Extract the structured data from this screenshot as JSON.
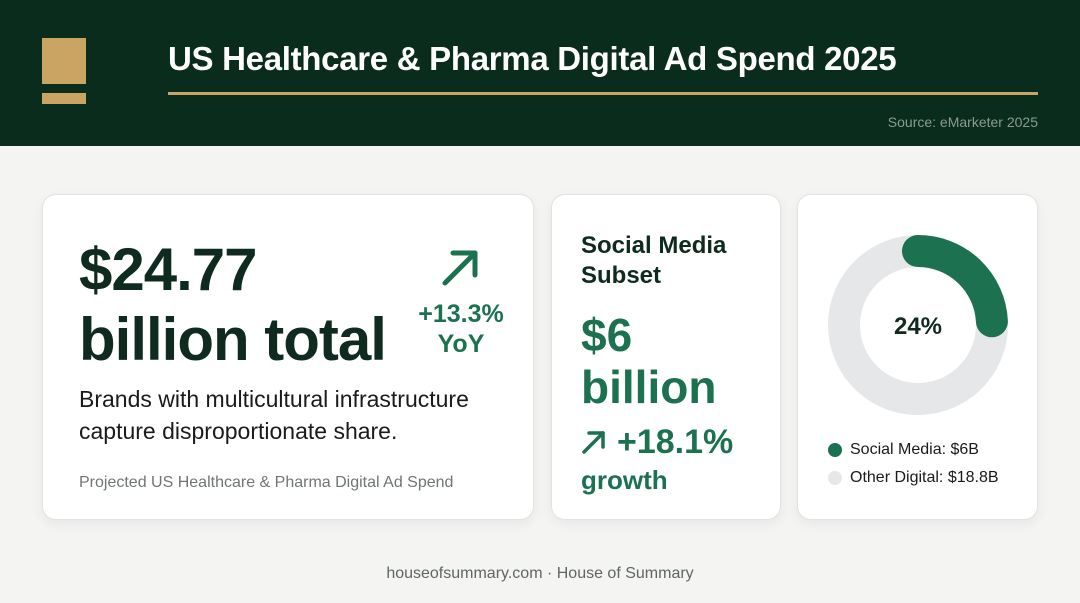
{
  "header": {
    "title": "US Healthcare & Pharma Digital Ad Spend 2025",
    "source": "Source: eMarketer 2025"
  },
  "total_card": {
    "value_line1": "$24.77",
    "value_line2": "billion total",
    "yoy_line1": "+13.3%",
    "yoy_line2": "YoY",
    "description": "Brands with multicultural infrastructure capture disproportionate share.",
    "note": "Projected US Healthcare & Pharma Digital Ad Spend"
  },
  "social_card": {
    "title": "Social Media Subset",
    "value_line1": "$6",
    "value_line2": "billion",
    "growth": "+18.1%",
    "growth_label": "growth"
  },
  "chart_data": {
    "type": "pie",
    "center_label": "24%",
    "slices": [
      {
        "label": "Social Media: $6B",
        "value": 6,
        "color": "#1c7150"
      },
      {
        "label": "Other Digital: $18.8B",
        "value": 18.8,
        "color": "#e6e7e8"
      }
    ]
  },
  "colors": {
    "header_bg": "#0a2c1d",
    "gold": "#c9a463",
    "accent_green": "#1c7150"
  },
  "footer": {
    "text": "houseofsummary.com · House of Summary"
  }
}
